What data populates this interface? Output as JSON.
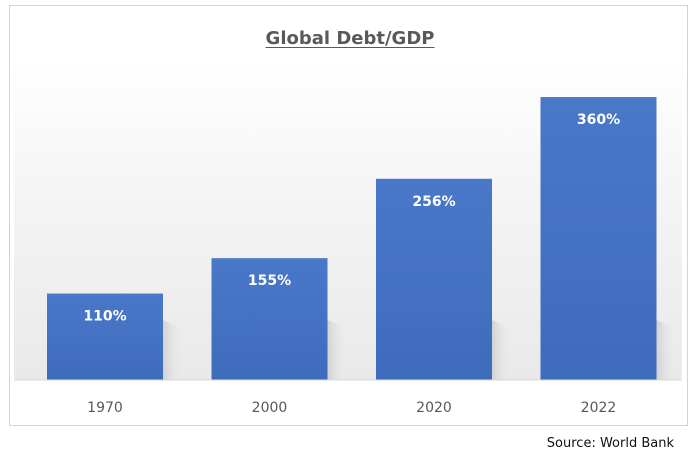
{
  "chart_data": {
    "type": "bar",
    "title": "Global Debt/GDP",
    "categories": [
      "1970",
      "2000",
      "2020",
      "2022"
    ],
    "values": [
      110,
      155,
      256,
      360
    ],
    "value_labels": [
      "110%",
      "155%",
      "256%",
      "360%"
    ],
    "ylim": [
      0,
      400
    ],
    "grid": false,
    "legend": "none",
    "bar_color": "#4472C4",
    "source": "Source: World Bank"
  }
}
